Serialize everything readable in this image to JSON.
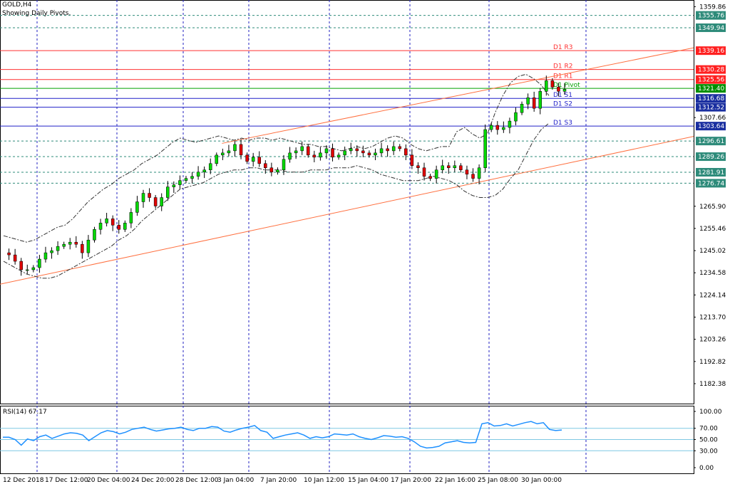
{
  "header": {
    "symbol": "GOLD,H4",
    "subtitle": "Showing Daily Pivots."
  },
  "rsi_panel": {
    "label": "RSI(14) 67.17",
    "levels": [
      "100.00",
      "70.00",
      "50.00",
      "30.00",
      "0.00"
    ]
  },
  "colors": {
    "bull": "#00d800",
    "bear": "#e00000",
    "wick": "#000000",
    "resistance": "#ff3030",
    "support": "#2020c8",
    "pivot": "#00a000",
    "channel": "#ff7040",
    "grid": "#2020c0",
    "rsi_line": "#1e90ff",
    "rsi_levels": "#7ec8e3"
  },
  "chart_data": [
    {
      "type": "candlestick",
      "title": "GOLD,H4",
      "subtitle": "Showing Daily Pivots.",
      "y_axis_ticks": [
        "1359.86",
        "1349.94",
        "1339.16",
        "1330.28",
        "1325.56",
        "1321.40",
        "1316.68",
        "1312.52",
        "1307.66",
        "1303.64",
        "1296.61",
        "1289.26",
        "1281.91",
        "1276.74",
        "1265.90",
        "1255.46",
        "1245.02",
        "1234.58",
        "1224.14",
        "1213.70",
        "1203.26",
        "1192.82",
        "1182.38"
      ],
      "ylim": [
        1173,
        1363
      ],
      "x_tick_labels": [
        "12 Dec 2018",
        "17 Dec 12:00",
        "20 Dec 04:00",
        "24 Dec 20:00",
        "28 Dec 12:00",
        "3 Jan 04:00",
        "7 Jan 20:00",
        "10 Jan 12:00",
        "15 Jan 04:00",
        "17 Jan 20:00",
        "22 Jan 16:00",
        "25 Jan 08:00",
        "30 Jan 00:00"
      ],
      "pivots": [
        {
          "label": "D1 R3",
          "value": 1339.16
        },
        {
          "label": "D1 R2",
          "value": 1330.28
        },
        {
          "label": "D1 R1",
          "value": 1325.56
        },
        {
          "label": "D1 Pivot",
          "value": 1321.4
        },
        {
          "label": "D1 S1",
          "value": 1316.68
        },
        {
          "label": "D1 S2",
          "value": 1312.52
        },
        {
          "label": "D1 S3",
          "value": 1303.64
        }
      ],
      "price_level_lines": [
        1355.76,
        1349.94,
        1296.61,
        1289.26,
        1281.91,
        1276.74
      ],
      "boxed_price_labels": [
        {
          "text": "1355.76",
          "value": 1355.76,
          "style": "teal"
        },
        {
          "text": "1349.94",
          "value": 1349.94,
          "style": "teal"
        },
        {
          "text": "1339.16",
          "value": 1339.16,
          "style": "red"
        },
        {
          "text": "1330.28",
          "value": 1330.28,
          "style": "red"
        },
        {
          "text": "1325.56",
          "value": 1325.56,
          "style": "red"
        },
        {
          "text": "1321.40",
          "value": 1321.4,
          "style": "green"
        },
        {
          "text": "1316.68",
          "value": 1316.68,
          "style": "blue"
        },
        {
          "text": "1312.52",
          "value": 1312.52,
          "style": "blue"
        },
        {
          "text": "1303.64",
          "value": 1303.64,
          "style": "blue"
        },
        {
          "text": "1296.61",
          "value": 1296.61,
          "style": "teal"
        },
        {
          "text": "1289.26",
          "value": 1289.26,
          "style": "teal"
        },
        {
          "text": "1281.91",
          "value": 1281.91,
          "style": "teal"
        },
        {
          "text": "1276.74",
          "value": 1276.74,
          "style": "teal"
        }
      ],
      "channel": {
        "upper": [
          [
            0.32,
            1295.5
          ],
          [
            1.0,
            1340.5
          ]
        ],
        "lower": [
          [
            0.0,
            1229.2
          ],
          [
            1.0,
            1298.8
          ]
        ]
      },
      "close_path": [
        1244,
        1243,
        1240,
        1236,
        1236,
        1237,
        1241,
        1244,
        1245,
        1247,
        1248,
        1249,
        1248,
        1244,
        1250,
        1255,
        1258,
        1260,
        1257,
        1255,
        1258,
        1263,
        1268,
        1272,
        1270,
        1266,
        1270,
        1275,
        1276,
        1278,
        1279,
        1280,
        1282,
        1283,
        1286,
        1290,
        1291,
        1292,
        1295,
        1290,
        1287,
        1289,
        1286,
        1284,
        1282,
        1283,
        1288,
        1291,
        1292,
        1294,
        1290,
        1289,
        1291,
        1293,
        1289,
        1290,
        1292,
        1293,
        1292,
        1291,
        1290,
        1291,
        1293,
        1292,
        1294,
        1293,
        1290,
        1285,
        1284,
        1280,
        1279,
        1283,
        1285,
        1284,
        1285,
        1283,
        1281,
        1279,
        1284,
        1302,
        1304,
        1302,
        1303,
        1306,
        1310,
        1314,
        1317,
        1312,
        1320,
        1325,
        1322,
        1320,
        1321
      ],
      "bollinger_upper": [
        1252,
        1251,
        1250,
        1249,
        1250,
        1252,
        1254,
        1256,
        1257,
        1260,
        1264,
        1268,
        1271,
        1274,
        1276,
        1279,
        1281,
        1283,
        1286,
        1288,
        1290,
        1293,
        1296,
        1298,
        1297,
        1296,
        1297,
        1298,
        1299,
        1298,
        1297,
        1298,
        1297,
        1298,
        1298,
        1297,
        1298,
        1297,
        1296,
        1295,
        1295,
        1294,
        1294,
        1293,
        1292,
        1293,
        1294,
        1293,
        1294,
        1296,
        1298,
        1299,
        1298,
        1295,
        1293,
        1292,
        1293,
        1294,
        1294,
        1301,
        1303,
        1300,
        1298,
        1300,
        1310,
        1318,
        1324,
        1327,
        1328,
        1326,
        1323,
        1318
      ],
      "bollinger_lower": [
        1240,
        1238,
        1236,
        1234,
        1233,
        1232,
        1232,
        1233,
        1235,
        1237,
        1239,
        1241,
        1243,
        1245,
        1247,
        1250,
        1252,
        1255,
        1259,
        1262,
        1265,
        1268,
        1271,
        1274,
        1275,
        1276,
        1277,
        1279,
        1281,
        1282,
        1283,
        1283,
        1284,
        1284,
        1283,
        1283,
        1283,
        1282,
        1282,
        1282,
        1283,
        1283,
        1283,
        1284,
        1284,
        1284,
        1285,
        1284,
        1283,
        1281,
        1280,
        1279,
        1278,
        1278,
        1278,
        1279,
        1280,
        1279,
        1278,
        1276,
        1273,
        1271,
        1270,
        1270,
        1271,
        1274,
        1279,
        1283,
        1290,
        1297,
        1302,
        1305
      ],
      "rsi": {
        "ylim": [
          0,
          100
        ],
        "levels": [
          70,
          50,
          30
        ],
        "values": [
          54,
          54,
          50,
          40,
          51,
          48,
          55,
          58,
          52,
          56,
          60,
          62,
          61,
          58,
          48,
          55,
          62,
          66,
          64,
          60,
          63,
          68,
          70,
          72,
          68,
          65,
          67,
          69,
          70,
          72,
          68,
          66,
          70,
          70,
          73,
          72,
          65,
          63,
          67,
          70,
          72,
          75,
          66,
          63,
          52,
          55,
          58,
          60,
          62,
          58,
          52,
          55,
          53,
          55,
          60,
          59,
          58,
          60,
          55,
          52,
          50,
          53,
          57,
          56,
          54,
          55,
          52,
          46,
          38,
          35,
          36,
          38,
          44,
          46,
          48,
          45,
          44,
          45,
          78,
          80,
          74,
          75,
          78,
          74,
          77,
          80,
          82,
          78,
          80,
          68,
          66,
          67
        ]
      }
    }
  ]
}
